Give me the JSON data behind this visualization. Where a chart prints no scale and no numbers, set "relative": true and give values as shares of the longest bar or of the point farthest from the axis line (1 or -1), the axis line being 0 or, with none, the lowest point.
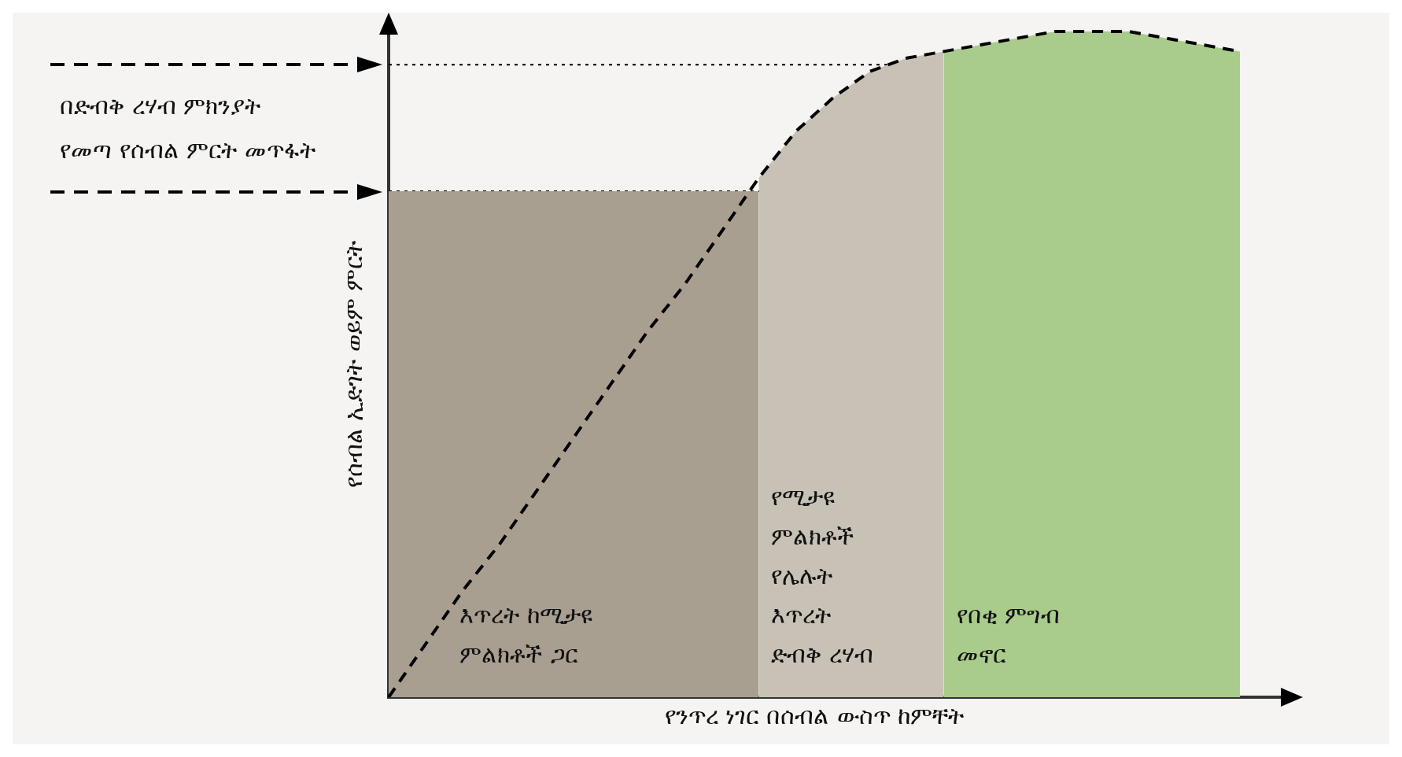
{
  "chart_data": {
    "type": "line",
    "relative": true,
    "xlabel": "የንጥረ ነገር በሰብል ውስጥ ከምቸት",
    "ylabel": "የሰብል ኢድገት ወይም ምርት",
    "grid": false,
    "legend": false,
    "marker": "none",
    "categories": [
      null,
      null,
      null,
      null,
      null,
      null,
      null,
      null,
      null,
      null,
      null,
      null,
      null,
      null,
      null,
      null,
      null,
      null,
      null,
      null,
      null,
      null,
      null,
      null
    ],
    "series": [
      {
        "color": "#000000",
        "line_style": "dashed",
        "values": [
          0,
          0.08,
          0.16,
          0.23,
          0.31,
          0.39,
          0.47,
          0.55,
          0.62,
          0.7,
          0.78,
          0.85,
          0.9,
          0.94,
          0.96,
          0.97,
          0.98,
          0.99,
          1,
          1,
          1,
          0.99,
          0.98,
          0.97
        ]
      },
      {
        "type": "area",
        "color": "#a89f91",
        "values": [
          0.76,
          0.76,
          0.76,
          0.76,
          0.76,
          0.76,
          0.76,
          0.76,
          0.76,
          0.76,
          0.76,
          null,
          null,
          null,
          null,
          null,
          null,
          null,
          null,
          null,
          null,
          null,
          null,
          null
        ]
      },
      {
        "type": "area",
        "color": "#c8c1b6",
        "values": [
          null,
          null,
          null,
          null,
          null,
          null,
          null,
          null,
          null,
          null,
          0.78,
          0.85,
          0.9,
          0.94,
          0.96,
          0.97,
          null,
          null,
          null,
          null,
          null,
          null,
          null,
          null
        ]
      },
      {
        "type": "area",
        "color": "#a9cb8c",
        "values": [
          null,
          null,
          null,
          null,
          null,
          null,
          null,
          null,
          null,
          null,
          null,
          null,
          null,
          null,
          null,
          0.97,
          0.98,
          0.99,
          1,
          1,
          1,
          0.99,
          0.98,
          0.97
        ]
      }
    ],
    "ref_lines": [
      {
        "axis": "y",
        "value": 0.95,
        "line_style": "dotted"
      },
      {
        "axis": "y",
        "value": 0.76,
        "line_style": "dotted"
      }
    ],
    "annotations": [
      "በድብቅ ረሃብ ምክንያት\nየመጣ የሰብል ምርት መጥፋት",
      "እጥረት ከሚታዩ\nምልክቶች ጋር",
      "የሚታዩ\nምልክቶች\nየሌሉት\nእጥረት\nድብቅ ረሃብ",
      "የበቂ ምግብ\nመኖር"
    ]
  }
}
